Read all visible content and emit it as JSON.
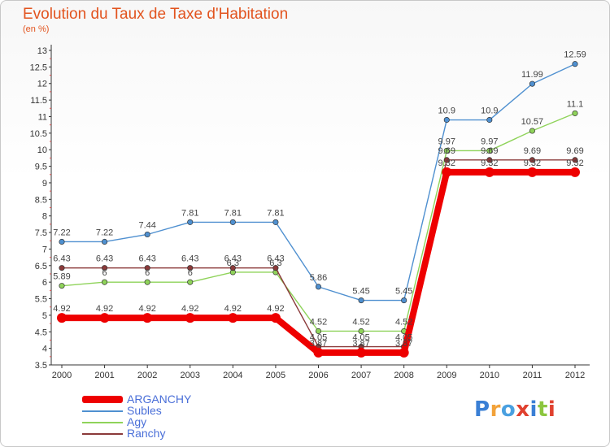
{
  "chart_data": {
    "type": "line",
    "title": "Evolution du Taux de Taxe d'Habitation",
    "subtitle": "(en %)",
    "xlabel": "",
    "ylabel": "",
    "ylim": [
      3.5,
      13
    ],
    "y_ticks": [
      3.5,
      4,
      4.5,
      5,
      5.5,
      6,
      6.5,
      7,
      7.5,
      8,
      8.5,
      9,
      9.5,
      10,
      10.5,
      11,
      11.5,
      12,
      12.5,
      13
    ],
    "y_tick_labels": [
      "3.5",
      "4",
      "4.5",
      "5",
      "5.5",
      "6",
      "6.5",
      "7",
      "7.5",
      "8",
      "8.5",
      "9",
      "9.5",
      "10",
      "10.5",
      "11",
      "11.5",
      "12",
      "12.5",
      "13"
    ],
    "categories": [
      "2000",
      "2001",
      "2002",
      "2003",
      "2004",
      "2005",
      "2006",
      "2007",
      "2008",
      "2009",
      "2010",
      "2011",
      "2012"
    ],
    "grid": false,
    "legend_position": "bottom-left",
    "series": [
      {
        "name": "ARGANCHY",
        "color": "#ee0000",
        "values": [
          4.92,
          4.92,
          4.92,
          4.92,
          4.92,
          4.92,
          3.87,
          3.87,
          3.87,
          9.32,
          9.32,
          9.32,
          9.32
        ],
        "labels": [
          "4.92",
          "4.92",
          "4.92",
          "4.92",
          "4.92",
          "4.92",
          "3.87",
          "3.87",
          "3.87",
          "9.32",
          "9.32",
          "9.32",
          "9.32"
        ]
      },
      {
        "name": "Subles",
        "color": "#4f90d0",
        "values": [
          7.22,
          7.22,
          7.44,
          7.81,
          7.81,
          7.81,
          5.86,
          5.45,
          5.45,
          10.9,
          10.9,
          11.99,
          12.59
        ],
        "labels": [
          "7.22",
          "7.22",
          "7.44",
          "7.81",
          "7.81",
          "7.81",
          "5.86",
          "5.45",
          "5.45",
          "10.9",
          "10.9",
          "11.99",
          "12.59"
        ]
      },
      {
        "name": "Agy",
        "color": "#8fd35a",
        "values": [
          5.89,
          6,
          6,
          6,
          6.3,
          6.3,
          4.52,
          4.52,
          4.52,
          9.97,
          9.97,
          10.57,
          11.1
        ],
        "labels": [
          "5.89",
          "6",
          "6",
          "6",
          "6.3",
          "6.3",
          "4.52",
          "4.52",
          "4.52",
          "9.97",
          "9.97",
          "10.57",
          "11.1"
        ]
      },
      {
        "name": "Ranchy",
        "color": "#8b3a3a",
        "values": [
          6.43,
          6.43,
          6.43,
          6.43,
          6.43,
          6.43,
          4.05,
          4.05,
          4.05,
          9.69,
          9.69,
          9.69,
          9.69
        ],
        "labels": [
          "6.43",
          "6.43",
          "6.43",
          "6.43",
          "6.43",
          "6.43",
          "4.05",
          "4.05",
          "4.05",
          "9.69",
          "9.69",
          "9.69",
          "9.69"
        ]
      }
    ]
  },
  "brand": {
    "letters": [
      "P",
      "r",
      "o",
      "x",
      "i",
      "t",
      "i"
    ],
    "colors": [
      "#3a7fd5",
      "#f2a23a",
      "#4aa0e0",
      "#e0412f",
      "#3a7fd5",
      "#8cc63f",
      "#e0412f"
    ]
  }
}
